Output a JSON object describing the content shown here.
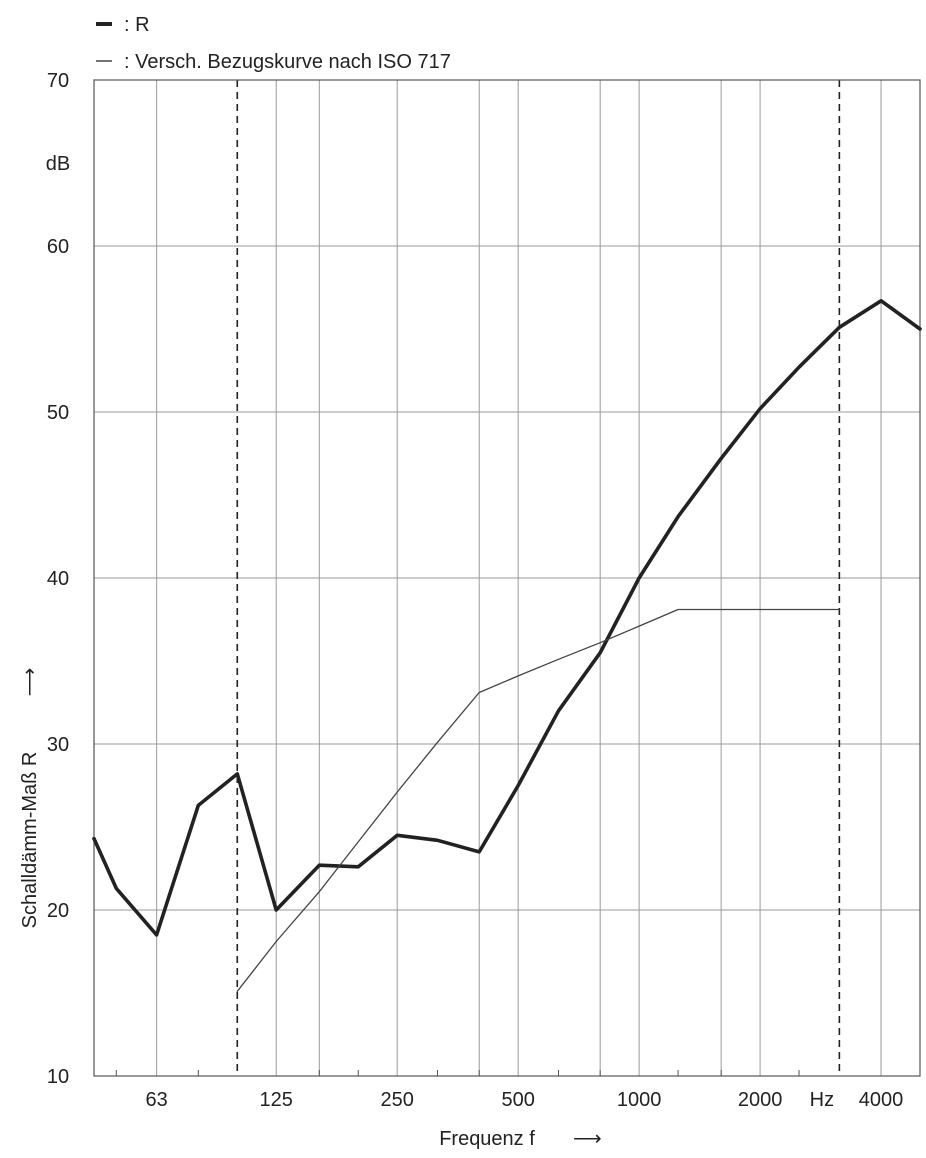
{
  "chart_data": {
    "type": "line",
    "x_scale": "log",
    "x_unit_label": "Hz",
    "xlabel": "Frequenz f",
    "xlabel_arrow": "⟶",
    "ylabel": "Schalldämm-Maß R",
    "ylabel_arrow": "⟶",
    "y_unit_label": "dB",
    "ylim": [
      10,
      70
    ],
    "xlim": [
      44,
      5000
    ],
    "grid": true,
    "y_ticks": [
      10,
      20,
      30,
      40,
      50,
      60,
      70
    ],
    "x_ticks": [
      {
        "value": 63,
        "label": "63"
      },
      {
        "value": 125,
        "label": "125"
      },
      {
        "value": 250,
        "label": "250"
      },
      {
        "value": 500,
        "label": "500"
      },
      {
        "value": 1000,
        "label": "1000"
      },
      {
        "value": 2000,
        "label": "2000"
      },
      {
        "value": 4000,
        "label": "4000"
      }
    ],
    "x_gridlines": [
      63,
      100,
      125,
      160,
      250,
      400,
      500,
      800,
      1000,
      1600,
      2000,
      3150,
      4000
    ],
    "vertical_dashed_markers": [
      100,
      3150
    ],
    "legend": {
      "placement": "top-left",
      "entries": [
        {
          "series": "R",
          "label": ": R"
        },
        {
          "series": "ref",
          "label": ": Versch. Bezugskurve nach ISO 717"
        }
      ]
    },
    "series": [
      {
        "name": "R",
        "key": "R",
        "color": "#222222",
        "stroke": "thick",
        "points": [
          [
            44,
            24.3
          ],
          [
            50,
            21.3
          ],
          [
            63,
            18.5
          ],
          [
            80,
            26.3
          ],
          [
            100,
            28.2
          ],
          [
            125,
            20.0
          ],
          [
            160,
            22.7
          ],
          [
            200,
            22.6
          ],
          [
            250,
            24.5
          ],
          [
            315,
            24.2
          ],
          [
            400,
            23.5
          ],
          [
            500,
            27.5
          ],
          [
            630,
            32.0
          ],
          [
            800,
            35.5
          ],
          [
            1000,
            40.0
          ],
          [
            1250,
            43.7
          ],
          [
            1600,
            47.2
          ],
          [
            2000,
            50.2
          ],
          [
            2500,
            52.7
          ],
          [
            3150,
            55.1
          ],
          [
            4000,
            56.7
          ],
          [
            5000,
            55.0
          ]
        ]
      },
      {
        "name": "Versch. Bezugskurve nach ISO 717",
        "key": "ref",
        "color": "#444444",
        "stroke": "thin",
        "points": [
          [
            100,
            15.1
          ],
          [
            125,
            18.1
          ],
          [
            160,
            21.1
          ],
          [
            200,
            24.1
          ],
          [
            250,
            27.1
          ],
          [
            315,
            30.1
          ],
          [
            400,
            33.1
          ],
          [
            500,
            34.1
          ],
          [
            630,
            35.1
          ],
          [
            800,
            36.1
          ],
          [
            1000,
            37.1
          ],
          [
            1250,
            38.1
          ],
          [
            1600,
            38.1
          ],
          [
            2000,
            38.1
          ],
          [
            2500,
            38.1
          ],
          [
            3150,
            38.1
          ]
        ]
      }
    ]
  }
}
